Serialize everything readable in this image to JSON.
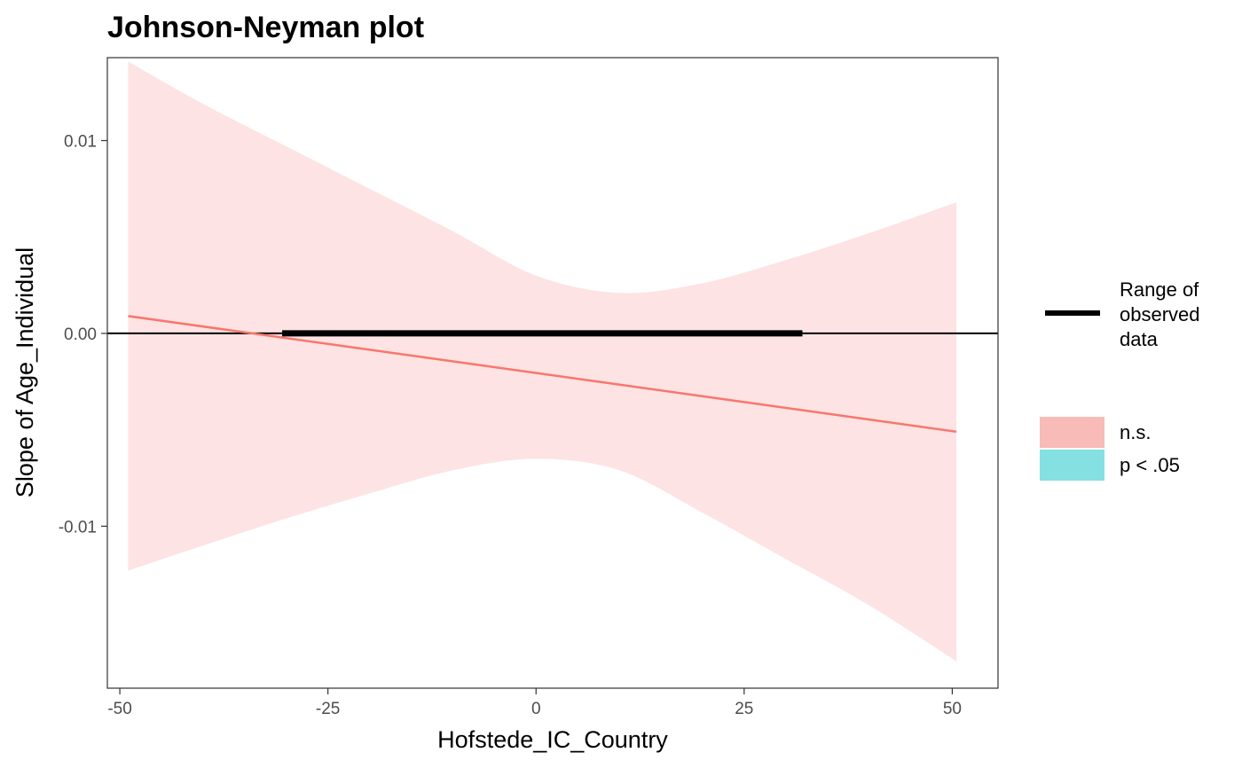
{
  "chart_data": {
    "type": "line",
    "title": "Johnson-Neyman plot",
    "xlabel": "Hofstede_IC_Country",
    "ylabel": "Slope of Age_Individual",
    "xlim": [
      -51.5,
      55.5
    ],
    "ylim": [
      -0.0184,
      0.0143
    ],
    "x_ticks": [
      -50,
      -25,
      0,
      25,
      50
    ],
    "x_tick_labels": [
      "-50",
      "-25",
      "0",
      "25",
      "50"
    ],
    "y_ticks": [
      -0.01,
      0.0,
      0.01
    ],
    "y_tick_labels": [
      "-0.01",
      "0.00",
      "0.01"
    ],
    "grid": false,
    "reference_line": {
      "y": 0.0,
      "color": "#000000"
    },
    "observed_range": {
      "x": [
        -30.5,
        32
      ]
    },
    "slope_line": {
      "x": [
        -49,
        50.5
      ],
      "y": [
        0.0009,
        -0.0051
      ],
      "color": "#F8766D"
    },
    "confidence_band": {
      "x": [
        -49,
        -40,
        -30,
        -20,
        -10,
        0,
        10,
        20,
        30,
        40,
        50.5
      ],
      "upper": [
        0.0141,
        0.0119,
        0.0097,
        0.0075,
        0.0053,
        0.003,
        0.0021,
        0.0026,
        0.0038,
        0.0052,
        0.0068
      ],
      "lower": [
        -0.0123,
        -0.011,
        -0.0096,
        -0.0083,
        -0.0071,
        -0.0065,
        -0.0071,
        -0.0093,
        -0.0117,
        -0.0141,
        -0.017
      ],
      "color": "#FDE3E3"
    },
    "legend": {
      "placement": "right",
      "line_entry": {
        "label_lines": [
          "Range of",
          "observed",
          "data"
        ],
        "color": "#000000"
      },
      "fill_entries": [
        {
          "label": "n.s.",
          "color": "#F8BBB8"
        },
        {
          "label": "p < .05",
          "color": "#84E0E1"
        }
      ]
    }
  }
}
